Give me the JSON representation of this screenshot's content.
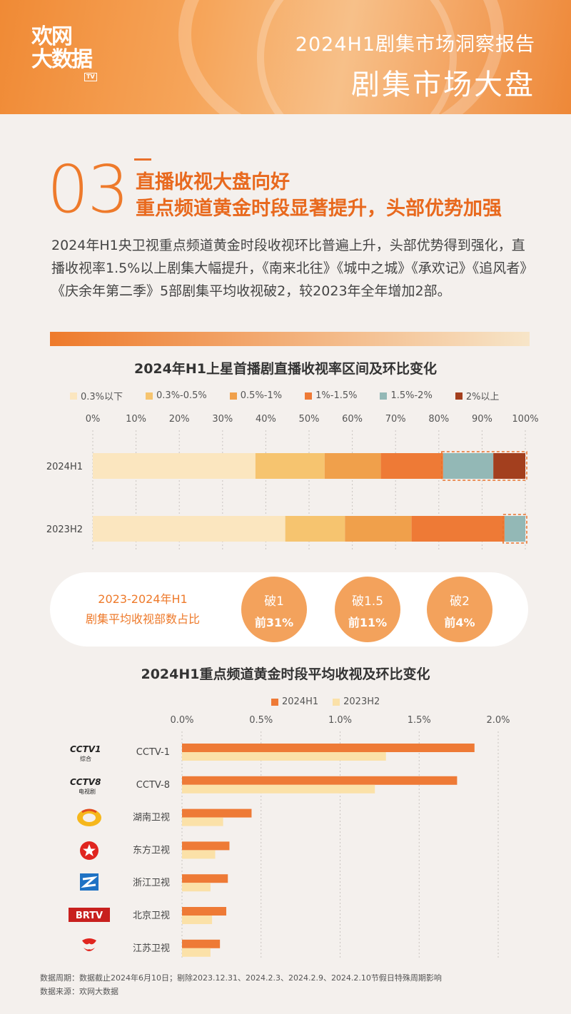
{
  "header": {
    "logo_line1": "欢网",
    "logo_line2": "大数据",
    "logo_tv": "TV",
    "subtitle": "2024H1剧集市场洞察报告",
    "title": "剧集市场大盘"
  },
  "section": {
    "number": "03",
    "headline1": "直播收视大盘向好",
    "headline2": "重点频道黄金时段显著提升，头部优势加强",
    "paragraph": "2024年H1央卫视重点频道黄金时段收视环比普遍上升，头部优势得到强化，直播收视率1.5%以上剧集大幅提升，《南来北往》《城中之城》《承欢记》《追风者》《庆余年第二季》5部剧集平均收视破2，较2023年全年增加2部。"
  },
  "chart_data": [
    {
      "type": "bar",
      "orientation": "horizontal-stacked-percent",
      "title": "2024年H1上星首播剧直播收视率区间及环比变化",
      "categories": [
        "2024H1",
        "2023H2"
      ],
      "xlim": [
        0,
        100
      ],
      "x_ticks": [
        "0%",
        "10%",
        "20%",
        "30%",
        "40%",
        "50%",
        "60%",
        "70%",
        "80%",
        "90%",
        "100%"
      ],
      "legend_position": "top",
      "series": [
        {
          "name": "0.3%以下",
          "color": "#fbe6bf",
          "values": [
            37.6,
            44.5
          ]
        },
        {
          "name": "0.3%-0.5%",
          "color": "#f6c46f",
          "values": [
            16.0,
            13.8
          ]
        },
        {
          "name": "0.5%-1%",
          "color": "#f0a04b",
          "values": [
            13.0,
            15.4
          ]
        },
        {
          "name": "1%-1.5%",
          "color": "#ee7a36",
          "values": [
            14.4,
            21.5
          ]
        },
        {
          "name": "1.5%-2%",
          "color": "#93b8b6",
          "values": [
            11.6,
            4.8
          ]
        },
        {
          "name": "2%以上",
          "color": "#a33f1e",
          "values": [
            7.4,
            0
          ]
        }
      ],
      "highlight": "dashed box around 1.5%以上 segments"
    },
    {
      "type": "bar",
      "orientation": "horizontal-grouped",
      "title": "2024H1重点频道黄金时段平均收视及环比变化",
      "categories": [
        "CCTV-1",
        "CCTV-8",
        "湖南卫视",
        "东方卫视",
        "浙江卫视",
        "北京卫视",
        "江苏卫视"
      ],
      "xlim": [
        0,
        2.0
      ],
      "x_ticks": [
        "0.0%",
        "0.5%",
        "1.0%",
        "1.5%",
        "2.0%"
      ],
      "legend_position": "top",
      "series": [
        {
          "name": "2024H1",
          "color": "#ee7a36",
          "values": [
            1.85,
            1.74,
            0.44,
            0.3,
            0.29,
            0.28,
            0.24
          ]
        },
        {
          "name": "2023H2",
          "color": "#fbe1a8",
          "values": [
            1.29,
            1.22,
            0.26,
            0.21,
            0.18,
            0.19,
            0.18
          ]
        }
      ]
    }
  ],
  "summary": {
    "label_line1": "2023-2024年H1",
    "label_line2": "剧集平均收视部数占比",
    "items": [
      {
        "title": "破1",
        "value": "前31%"
      },
      {
        "title": "破1.5",
        "value": "前11%"
      },
      {
        "title": "破2",
        "value": "前4%"
      }
    ]
  },
  "channel_logos": {
    "cctv1_text": "CCTV1",
    "cctv1_sub": "综合",
    "cctv8_text": "CCTV8",
    "cctv8_sub": "电视剧",
    "btv_text": "BRTV"
  },
  "footer": {
    "period": "数据周期：数据截止2024年6月10日；剔除2023.12.31、2024.2.3、2024.2.9、2024.2.10节假日特殊周期影响",
    "source": "数据来源：欢网大数据"
  }
}
